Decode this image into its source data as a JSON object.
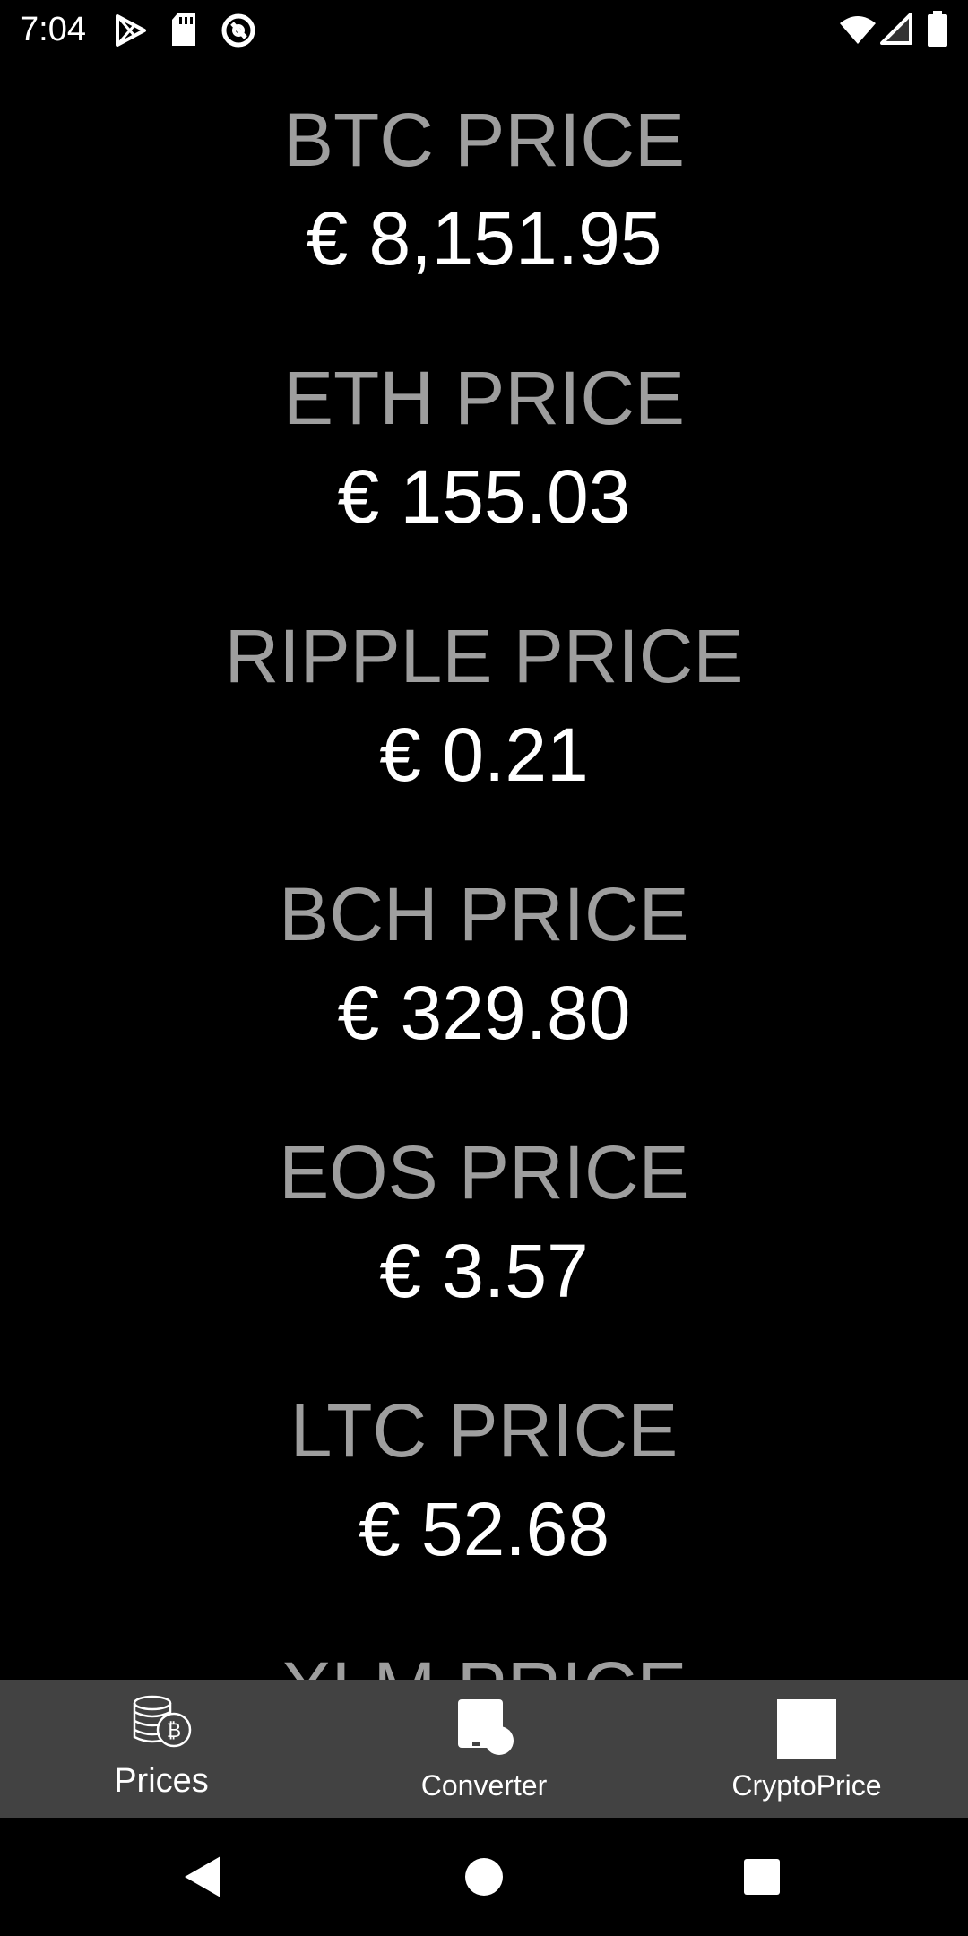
{
  "status_bar": {
    "time": "7:04",
    "left_icons": [
      "play-store-icon",
      "sd-card-icon",
      "at-sign-icon"
    ],
    "right_icons": [
      "wifi-icon",
      "signal-icon",
      "battery-icon"
    ]
  },
  "prices": [
    {
      "label": "BTC PRICE",
      "value": "€ 8,151.95"
    },
    {
      "label": "ETH PRICE",
      "value": "€ 155.03"
    },
    {
      "label": "RIPPLE PRICE",
      "value": "€ 0.21"
    },
    {
      "label": "BCH PRICE",
      "value": "€ 329.80"
    },
    {
      "label": "EOS PRICE",
      "value": "€ 3.57"
    },
    {
      "label": "LTC PRICE",
      "value": "€ 52.68"
    },
    {
      "label": "XLM PRICE",
      "value": ""
    }
  ],
  "bottom_nav": {
    "tabs": [
      {
        "label": "Prices",
        "icon": "coins-bitcoin-icon",
        "active": true
      },
      {
        "label": "Converter",
        "icon": "converter-icon",
        "active": false
      },
      {
        "label": "CryptoPrice",
        "icon": "square-icon",
        "active": false
      }
    ]
  },
  "system_nav": {
    "buttons": [
      "back-icon",
      "home-icon",
      "recents-icon"
    ]
  },
  "colors": {
    "background": "#000000",
    "label": "#9e9e9e",
    "value": "#ffffff",
    "nav_bar": "#424242"
  }
}
